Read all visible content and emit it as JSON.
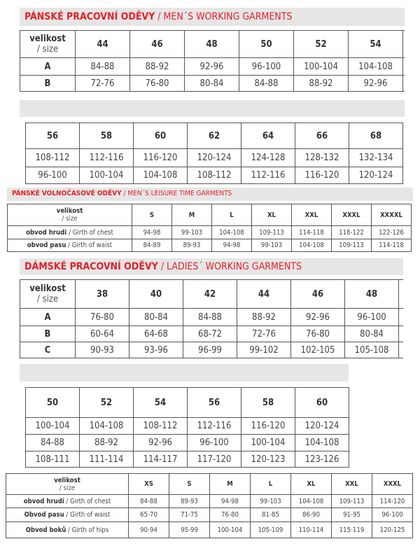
{
  "sections": [
    {
      "title_cz": "PÁNSKÉ PRACOVNÍ ODĚVY",
      "title_en": "/ MEN´S WORKING GARMENTS"
    },
    {
      "title_cz": "PÁNSKÉ VOLNOČASOVÉ ODĚVY",
      "title_en": "/ MEN´S LEISURE TIME GARMENTS"
    },
    {
      "title_cz": "DÁMSKÉ PRACOVNÍ ODĚVY",
      "title_en": "/ LADIES´ WORKING GARMENTS"
    }
  ],
  "size_label": {
    "cz": "velikost",
    "en": "/ size"
  },
  "tables": [
    {
      "header": [
        "44",
        "46",
        "48",
        "50",
        "52",
        "54"
      ],
      "rows": [
        {
          "label": "A",
          "values": [
            "84-88",
            "88-92",
            "92-96",
            "96-100",
            "100-104",
            "104-108"
          ]
        },
        {
          "label": "B",
          "values": [
            "72-76",
            "76-80",
            "80-84",
            "84-88",
            "88-92",
            "92-96"
          ]
        }
      ]
    },
    {
      "header": [
        "56",
        "58",
        "60",
        "62",
        "64",
        "66",
        "68"
      ],
      "rows": [
        {
          "values": [
            "108-112",
            "112-116",
            "116-120",
            "120-124",
            "124-128",
            "128-132",
            "132-134"
          ]
        },
        {
          "values": [
            "96-100",
            "100-104",
            "104-108",
            "108-112",
            "112-116",
            "116-120",
            "120-124"
          ]
        }
      ]
    },
    {
      "header": [
        "S",
        "M",
        "L",
        "XL",
        "XXL",
        "XXXL",
        "XXXXL"
      ],
      "rows": [
        {
          "label_cz": "obvod hrudi ",
          "label_en": "/ Girth of chest",
          "values": [
            "94-98",
            "99-103",
            "104-108",
            "109-113",
            "114-118",
            "118-122",
            "122-126"
          ]
        },
        {
          "label_cz": "obvod pasu",
          "label_en": " / Girth of waist",
          "values": [
            "84-89",
            "89-93",
            "94-98",
            "99-103",
            "104-108",
            "109-113",
            "114-118"
          ]
        }
      ]
    },
    {
      "header": [
        "38",
        "40",
        "42",
        "44",
        "46",
        "48"
      ],
      "rows": [
        {
          "label": "A",
          "values": [
            "76-80",
            "80-84",
            "84-88",
            "88-92",
            "92-96",
            "96-100"
          ]
        },
        {
          "label": "B",
          "values": [
            "60-64",
            "64-68",
            "68-72",
            "72-76",
            "76-80",
            "80-84"
          ]
        },
        {
          "label": "C",
          "values": [
            "90-93",
            "93-96",
            "96-99",
            "99-102",
            "102-105",
            "105-108"
          ]
        }
      ]
    },
    {
      "header": [
        "50",
        "52",
        "54",
        "56",
        "58",
        "60"
      ],
      "rows": [
        {
          "values": [
            "100-104",
            "104-108",
            "108-112",
            "112-116",
            "116-120",
            "120-124"
          ]
        },
        {
          "values": [
            "84-88",
            "88-92",
            "92-96",
            "96-100",
            "100-104",
            "104-108"
          ]
        },
        {
          "values": [
            "108-111",
            "111-114",
            "114-117",
            "117-120",
            "120-123",
            "123-126"
          ]
        }
      ]
    },
    {
      "header": [
        "XS",
        "S",
        "M",
        "L",
        "XL",
        "XXL",
        "XXXL"
      ],
      "rows": [
        {
          "label_cz": "obvod hrudi",
          "label_en": " / Girth of chest",
          "values": [
            "84-88",
            "89-93",
            "94-98",
            "99-103",
            "104-108",
            "109-113",
            "114-120"
          ]
        },
        {
          "label_cz": "Obvod pasu",
          "label_en": " / Girth of waist",
          "values": [
            "65-70",
            "71-75",
            "76-80",
            "81-85",
            "86-90",
            "91-95",
            "96-100"
          ]
        },
        {
          "label_cz": "Obvod boků",
          "label_en": " / Girth of hips",
          "values": [
            "90-94",
            "95-99",
            "100-104",
            "105-109",
            "110-114",
            "115-119",
            "120-125"
          ]
        }
      ]
    }
  ]
}
